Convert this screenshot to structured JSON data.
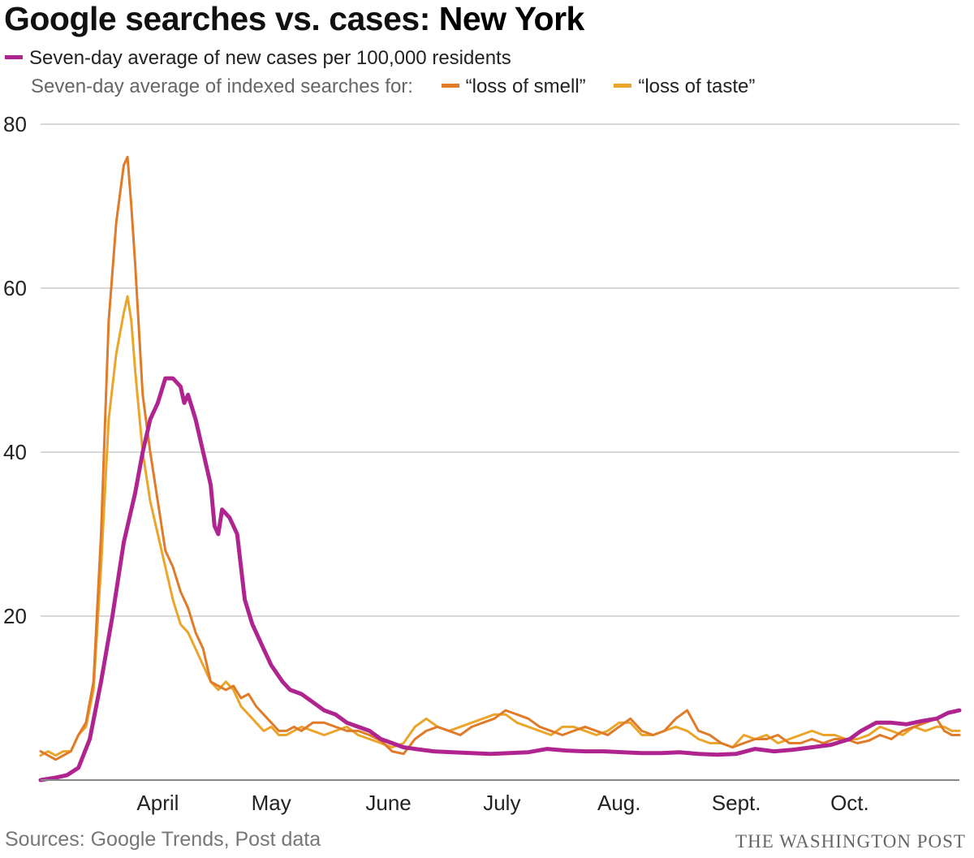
{
  "title_regular": "Google searches vs. cases: ",
  "title_bold": "New York",
  "legend": {
    "cases_label": "Seven-day average of new cases per 100,000 residents",
    "searches_prefix": "Seven-day average of indexed searches for:",
    "smell_label": "“loss of smell”",
    "taste_label": "“loss of taste”"
  },
  "sources": "Sources: Google Trends, Post data",
  "credit": "THE WASHINGTON POST",
  "colors": {
    "cases": "#b0248f",
    "smell": "#e07b2a",
    "taste": "#eba52b"
  },
  "chart_data": {
    "type": "line",
    "x_unit": "day of year 2020",
    "x_range": [
      61,
      304
    ],
    "ylim": [
      0,
      80
    ],
    "yticks": [
      "80",
      "60",
      "40",
      "20"
    ],
    "ytick_values": [
      80,
      60,
      40,
      20
    ],
    "xticks": [
      {
        "label": "April",
        "x": 92
      },
      {
        "label": "May",
        "x": 122
      },
      {
        "label": "June",
        "x": 153
      },
      {
        "label": "July",
        "x": 183
      },
      {
        "label": "Aug.",
        "x": 214
      },
      {
        "label": "Sept.",
        "x": 245
      },
      {
        "label": "Oct.",
        "x": 275
      }
    ],
    "grid": true,
    "series": [
      {
        "name": "Seven-day average of new cases per 100,000 residents",
        "key": "cases",
        "points": [
          [
            61,
            0
          ],
          [
            65,
            0.3
          ],
          [
            68,
            0.6
          ],
          [
            71,
            1.5
          ],
          [
            74,
            5
          ],
          [
            77,
            12
          ],
          [
            80,
            20
          ],
          [
            83,
            29
          ],
          [
            86,
            35
          ],
          [
            88,
            40
          ],
          [
            90,
            44
          ],
          [
            92,
            46
          ],
          [
            94,
            49
          ],
          [
            96,
            49
          ],
          [
            98,
            48
          ],
          [
            99,
            46
          ],
          [
            100,
            47
          ],
          [
            102,
            44
          ],
          [
            104,
            40
          ],
          [
            106,
            36
          ],
          [
            107,
            31
          ],
          [
            108,
            30
          ],
          [
            109,
            33
          ],
          [
            111,
            32
          ],
          [
            113,
            30
          ],
          [
            114,
            26
          ],
          [
            115,
            22
          ],
          [
            117,
            19
          ],
          [
            120,
            16
          ],
          [
            122,
            14
          ],
          [
            125,
            12
          ],
          [
            127,
            11
          ],
          [
            130,
            10.5
          ],
          [
            133,
            9.5
          ],
          [
            136,
            8.5
          ],
          [
            139,
            8
          ],
          [
            142,
            7
          ],
          [
            145,
            6.5
          ],
          [
            148,
            6
          ],
          [
            151,
            5
          ],
          [
            154,
            4.5
          ],
          [
            157,
            4
          ],
          [
            160,
            3.8
          ],
          [
            165,
            3.5
          ],
          [
            170,
            3.4
          ],
          [
            175,
            3.3
          ],
          [
            180,
            3.2
          ],
          [
            185,
            3.3
          ],
          [
            190,
            3.4
          ],
          [
            195,
            3.8
          ],
          [
            200,
            3.6
          ],
          [
            205,
            3.5
          ],
          [
            210,
            3.5
          ],
          [
            215,
            3.4
          ],
          [
            220,
            3.3
          ],
          [
            225,
            3.3
          ],
          [
            230,
            3.4
          ],
          [
            235,
            3.2
          ],
          [
            240,
            3.1
          ],
          [
            245,
            3.2
          ],
          [
            250,
            3.8
          ],
          [
            255,
            3.5
          ],
          [
            260,
            3.7
          ],
          [
            265,
            4
          ],
          [
            270,
            4.3
          ],
          [
            275,
            5
          ],
          [
            278,
            6
          ],
          [
            282,
            7
          ],
          [
            286,
            7
          ],
          [
            290,
            6.8
          ],
          [
            294,
            7.2
          ],
          [
            298,
            7.5
          ],
          [
            301,
            8.2
          ],
          [
            304,
            8.5
          ]
        ]
      },
      {
        "name": "“loss of smell”",
        "key": "smell",
        "points": [
          [
            61,
            3.5
          ],
          [
            63,
            3
          ],
          [
            65,
            2.5
          ],
          [
            67,
            3
          ],
          [
            69,
            3.5
          ],
          [
            71,
            5.5
          ],
          [
            73,
            7
          ],
          [
            75,
            12
          ],
          [
            77,
            30
          ],
          [
            79,
            56
          ],
          [
            81,
            68
          ],
          [
            83,
            75
          ],
          [
            84,
            76
          ],
          [
            85,
            70
          ],
          [
            86,
            63
          ],
          [
            88,
            47
          ],
          [
            90,
            40
          ],
          [
            92,
            34
          ],
          [
            94,
            28
          ],
          [
            96,
            26
          ],
          [
            98,
            23
          ],
          [
            100,
            21
          ],
          [
            102,
            18
          ],
          [
            104,
            16
          ],
          [
            106,
            12
          ],
          [
            108,
            11.5
          ],
          [
            110,
            11
          ],
          [
            112,
            11.5
          ],
          [
            114,
            10
          ],
          [
            116,
            10.5
          ],
          [
            118,
            9
          ],
          [
            120,
            8
          ],
          [
            122,
            7
          ],
          [
            124,
            6
          ],
          [
            126,
            6
          ],
          [
            128,
            6.5
          ],
          [
            130,
            6
          ],
          [
            133,
            7
          ],
          [
            136,
            7
          ],
          [
            139,
            6.5
          ],
          [
            142,
            6
          ],
          [
            145,
            6
          ],
          [
            148,
            5.5
          ],
          [
            151,
            4.8
          ],
          [
            154,
            3.5
          ],
          [
            157,
            3.2
          ],
          [
            160,
            5
          ],
          [
            163,
            6
          ],
          [
            166,
            6.5
          ],
          [
            169,
            6
          ],
          [
            172,
            5.5
          ],
          [
            175,
            6.5
          ],
          [
            178,
            7
          ],
          [
            181,
            7.5
          ],
          [
            184,
            8.5
          ],
          [
            187,
            8
          ],
          [
            190,
            7.5
          ],
          [
            193,
            6.5
          ],
          [
            196,
            6
          ],
          [
            199,
            5.5
          ],
          [
            202,
            6
          ],
          [
            205,
            6.5
          ],
          [
            208,
            6
          ],
          [
            211,
            5.5
          ],
          [
            214,
            6.5
          ],
          [
            217,
            7.5
          ],
          [
            220,
            6
          ],
          [
            223,
            5.5
          ],
          [
            226,
            6
          ],
          [
            229,
            7.5
          ],
          [
            232,
            8.5
          ],
          [
            235,
            6
          ],
          [
            238,
            5.5
          ],
          [
            241,
            4.5
          ],
          [
            244,
            4
          ],
          [
            247,
            4.5
          ],
          [
            250,
            5
          ],
          [
            253,
            5
          ],
          [
            256,
            5.5
          ],
          [
            259,
            4.5
          ],
          [
            262,
            4.5
          ],
          [
            265,
            5
          ],
          [
            268,
            4.5
          ],
          [
            271,
            5
          ],
          [
            274,
            5
          ],
          [
            277,
            4.5
          ],
          [
            280,
            4.8
          ],
          [
            283,
            5.5
          ],
          [
            286,
            5
          ],
          [
            289,
            6
          ],
          [
            292,
            6.5
          ],
          [
            295,
            7
          ],
          [
            298,
            7.5
          ],
          [
            300,
            6
          ],
          [
            302,
            5.5
          ],
          [
            304,
            5.5
          ]
        ]
      },
      {
        "name": "“loss of taste”",
        "key": "taste",
        "points": [
          [
            61,
            3
          ],
          [
            63,
            3.5
          ],
          [
            65,
            3
          ],
          [
            67,
            3.5
          ],
          [
            69,
            3.5
          ],
          [
            71,
            5.5
          ],
          [
            73,
            6.5
          ],
          [
            75,
            11
          ],
          [
            77,
            26
          ],
          [
            79,
            44
          ],
          [
            81,
            52
          ],
          [
            83,
            57
          ],
          [
            84,
            59
          ],
          [
            85,
            56
          ],
          [
            86,
            50
          ],
          [
            88,
            40
          ],
          [
            90,
            34
          ],
          [
            92,
            30
          ],
          [
            94,
            26
          ],
          [
            96,
            22
          ],
          [
            98,
            19
          ],
          [
            100,
            18
          ],
          [
            102,
            16
          ],
          [
            104,
            14
          ],
          [
            106,
            12
          ],
          [
            108,
            11
          ],
          [
            110,
            12
          ],
          [
            112,
            11
          ],
          [
            114,
            9
          ],
          [
            116,
            8
          ],
          [
            118,
            7
          ],
          [
            120,
            6
          ],
          [
            122,
            6.5
          ],
          [
            124,
            5.5
          ],
          [
            126,
            5.5
          ],
          [
            128,
            6
          ],
          [
            130,
            6.5
          ],
          [
            133,
            6
          ],
          [
            136,
            5.5
          ],
          [
            139,
            6
          ],
          [
            142,
            6.5
          ],
          [
            145,
            5.5
          ],
          [
            148,
            5
          ],
          [
            151,
            4.5
          ],
          [
            154,
            4
          ],
          [
            157,
            4.5
          ],
          [
            160,
            6.5
          ],
          [
            163,
            7.5
          ],
          [
            166,
            6.5
          ],
          [
            169,
            6
          ],
          [
            172,
            6.5
          ],
          [
            175,
            7
          ],
          [
            178,
            7.5
          ],
          [
            181,
            8
          ],
          [
            184,
            8
          ],
          [
            187,
            7
          ],
          [
            190,
            6.5
          ],
          [
            193,
            6
          ],
          [
            196,
            5.5
          ],
          [
            199,
            6.5
          ],
          [
            202,
            6.5
          ],
          [
            205,
            6
          ],
          [
            208,
            5.5
          ],
          [
            211,
            6
          ],
          [
            214,
            7
          ],
          [
            217,
            7
          ],
          [
            220,
            5.5
          ],
          [
            223,
            5.5
          ],
          [
            226,
            6
          ],
          [
            229,
            6.5
          ],
          [
            232,
            6
          ],
          [
            235,
            5
          ],
          [
            238,
            4.5
          ],
          [
            241,
            4.5
          ],
          [
            244,
            4
          ],
          [
            247,
            5.5
          ],
          [
            250,
            5
          ],
          [
            253,
            5.5
          ],
          [
            256,
            4.5
          ],
          [
            259,
            5
          ],
          [
            262,
            5.5
          ],
          [
            265,
            6
          ],
          [
            268,
            5.5
          ],
          [
            271,
            5.5
          ],
          [
            274,
            5
          ],
          [
            277,
            5
          ],
          [
            280,
            5.5
          ],
          [
            283,
            6.5
          ],
          [
            286,
            6
          ],
          [
            289,
            5.5
          ],
          [
            292,
            6.5
          ],
          [
            295,
            6
          ],
          [
            298,
            6.5
          ],
          [
            300,
            6.5
          ],
          [
            302,
            6
          ],
          [
            304,
            6
          ]
        ]
      }
    ]
  }
}
